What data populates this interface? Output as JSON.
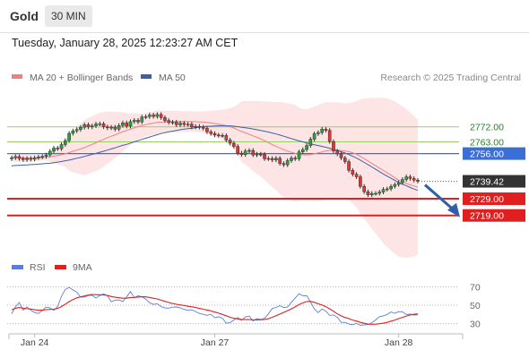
{
  "header": {
    "title": "Gold",
    "timeframe": "30 MIN"
  },
  "timestamp": "Tuesday, January 28, 2025 12:23:27 AM CET",
  "copyright": "Research © 2025 Trading Central",
  "colors": {
    "ma20": "#f08080",
    "ma50": "#3f5ea8",
    "bb_fill": "#fde0e0",
    "up": "#2e9e40",
    "down": "#d33b3b",
    "support": "#e02020",
    "resistance": "#9acd6a",
    "pivot": "#3a6fd8",
    "current": "#333333",
    "arrow": "#2f5fa8",
    "rsi": "#5a7fd8",
    "rsi_ma": "#e02020"
  },
  "chart_data": [
    {
      "type": "candlestick",
      "title": "Gold",
      "legend": [
        {
          "name": "MA 20 + Bollinger Bands",
          "color": "#f08080"
        },
        {
          "name": "MA 50",
          "color": "#3f5ea8"
        }
      ],
      "legend_position": "top-left",
      "ylim": [
        2706,
        2797
      ],
      "x_tick_labels": [
        {
          "index": 6,
          "label": "Jan 24"
        },
        {
          "index": 53,
          "label": "Jan 27"
        },
        {
          "index": 101,
          "label": "Jan 28"
        }
      ],
      "levels": [
        {
          "value": 2772.0,
          "label": "2772.00",
          "kind": "resistance"
        },
        {
          "value": 2763.0,
          "label": "2763.00",
          "kind": "resistance"
        },
        {
          "value": 2756.0,
          "label": "2756.00",
          "kind": "pivot"
        },
        {
          "value": 2739.42,
          "label": "2739.42",
          "kind": "current"
        },
        {
          "value": 2729.0,
          "label": "2729.00",
          "kind": "support"
        },
        {
          "value": 2719.0,
          "label": "2719.00",
          "kind": "support"
        }
      ],
      "forecast_arrow": {
        "from": 2739.42,
        "to": 2719.0,
        "direction": "down"
      },
      "closes": [
        2753.5,
        2754.2,
        2753.0,
        2752.4,
        2753.1,
        2752.6,
        2753.5,
        2754.0,
        2754.3,
        2755.2,
        2757.4,
        2759.3,
        2758.9,
        2761.4,
        2763.8,
        2768.1,
        2769.6,
        2770.4,
        2771.7,
        2773.3,
        2771.9,
        2772.6,
        2773.7,
        2773.8,
        2772.0,
        2771.4,
        2771.8,
        2770.6,
        2772.8,
        2774.4,
        2772.4,
        2775.1,
        2775.9,
        2774.9,
        2777.9,
        2778.1,
        2779.1,
        2778.2,
        2779.4,
        2777.5,
        2775.8,
        2774.6,
        2774.8,
        2773.2,
        2774.2,
        2773.4,
        2773.6,
        2771.9,
        2772.3,
        2771.8,
        2771.1,
        2769.0,
        2768.0,
        2767.1,
        2766.9,
        2766.8,
        2764.1,
        2762.2,
        2760.3,
        2756.3,
        2755.4,
        2757.5,
        2757.9,
        2755.2,
        2755.7,
        2755.5,
        2752.9,
        2753.1,
        2752.2,
        2753.2,
        2750.1,
        2749.3,
        2751.8,
        2753.3,
        2752.9,
        2757.0,
        2758.4,
        2760.8,
        2764.6,
        2767.9,
        2768.6,
        2770.6,
        2769.9,
        2763.2,
        2757.5,
        2755.8,
        2753.4,
        2751.2,
        2746.0,
        2743.6,
        2742.1,
        2736.4,
        2733.2,
        2731.3,
        2732.2,
        2732.2,
        2733.0,
        2734.6,
        2734.9,
        2736.4,
        2737.5,
        2738.6,
        2740.5,
        2742.1,
        2741.1,
        2740.1,
        2739.4
      ],
      "ma20": [
        2753.5,
        2753.8,
        2753.6,
        2753.4,
        2753.3,
        2753.2,
        2753.3,
        2753.4,
        2753.5,
        2753.7,
        2754.0,
        2754.5,
        2754.8,
        2755.3,
        2755.9,
        2756.6,
        2757.4,
        2758.1,
        2758.8,
        2759.6,
        2760.6,
        2761.5,
        2762.5,
        2763.6,
        2764.5,
        2765.5,
        2766.4,
        2767.2,
        2768.2,
        2769.1,
        2769.8,
        2770.6,
        2771.4,
        2772.1,
        2772.8,
        2773.3,
        2773.8,
        2774.2,
        2774.6,
        2774.8,
        2775.0,
        2775.1,
        2775.1,
        2775.1,
        2775.2,
        2775.2,
        2775.2,
        2775.1,
        2775.1,
        2774.9,
        2774.9,
        2774.6,
        2774.3,
        2774.0,
        2773.6,
        2773.1,
        2772.7,
        2772.1,
        2771.3,
        2770.3,
        2769.2,
        2768.4,
        2767.5,
        2766.6,
        2765.7,
        2764.8,
        2763.7,
        2762.6,
        2761.4,
        2760.4,
        2759.3,
        2758.3,
        2757.5,
        2756.8,
        2756.1,
        2755.6,
        2755.3,
        2755.2,
        2755.4,
        2755.9,
        2756.4,
        2757.0,
        2757.6,
        2758.0,
        2758.1,
        2758.1,
        2757.8,
        2757.5,
        2757.2,
        2756.5,
        2755.6,
        2754.3,
        2753.0,
        2751.6,
        2750.1,
        2748.7,
        2747.3,
        2745.9,
        2744.5,
        2743.1,
        2741.5,
        2740.1,
        2739.1,
        2738.1,
        2737.3,
        2736.6,
        2736.0
      ],
      "bb_upper": [
        2755.5,
        2756.6,
        2756.3,
        2756.0,
        2755.6,
        2755.2,
        2755.1,
        2755.0,
        2755.1,
        2755.4,
        2756.9,
        2758.9,
        2759.8,
        2761.8,
        2764.0,
        2767.4,
        2769.9,
        2771.9,
        2773.9,
        2776.2,
        2777.3,
        2778.4,
        2779.5,
        2780.4,
        2780.9,
        2781.0,
        2781.2,
        2781.0,
        2781.0,
        2780.8,
        2780.3,
        2780.2,
        2780.2,
        2779.9,
        2780.1,
        2780.4,
        2780.9,
        2781.2,
        2781.8,
        2781.7,
        2781.5,
        2781.5,
        2781.5,
        2781.5,
        2781.4,
        2781.4,
        2781.4,
        2781.3,
        2781.2,
        2781.2,
        2781.2,
        2781.4,
        2781.6,
        2781.8,
        2782.0,
        2782.2,
        2782.7,
        2783.3,
        2784.0,
        2785.5,
        2787.3,
        2787.5,
        2787.4,
        2787.6,
        2787.5,
        2787.3,
        2787.2,
        2787.1,
        2787.0,
        2786.7,
        2786.9,
        2786.6,
        2786.1,
        2785.6,
        2785.0,
        2783.4,
        2782.7,
        2782.5,
        2783.2,
        2784.1,
        2784.9,
        2786.0,
        2786.8,
        2786.7,
        2786.6,
        2786.6,
        2786.3,
        2786.1,
        2786.3,
        2786.8,
        2787.5,
        2788.5,
        2789.0,
        2789.1,
        2789.3,
        2789.3,
        2789.4,
        2789.4,
        2789.0,
        2788.2,
        2787.1,
        2785.7,
        2784.4,
        2782.6,
        2780.5,
        2778.6,
        2776.4
      ],
      "bb_lower": [
        2751.5,
        2751.1,
        2751.0,
        2750.9,
        2751.0,
        2751.2,
        2751.5,
        2751.8,
        2752.0,
        2752.0,
        2751.1,
        2750.2,
        2749.8,
        2748.8,
        2747.9,
        2745.8,
        2744.8,
        2744.3,
        2743.6,
        2743.0,
        2743.9,
        2744.7,
        2745.5,
        2746.7,
        2748.1,
        2750.0,
        2751.6,
        2753.3,
        2755.3,
        2757.3,
        2759.3,
        2761.1,
        2762.6,
        2764.3,
        2765.5,
        2766.3,
        2766.7,
        2767.2,
        2767.4,
        2767.9,
        2768.4,
        2768.7,
        2768.7,
        2768.7,
        2769.0,
        2769.0,
        2769.0,
        2768.9,
        2769.0,
        2768.7,
        2768.6,
        2767.8,
        2767.0,
        2766.2,
        2765.3,
        2764.0,
        2762.7,
        2761.0,
        2758.6,
        2755.1,
        2751.1,
        2749.3,
        2747.6,
        2745.6,
        2743.9,
        2742.3,
        2740.2,
        2738.1,
        2735.8,
        2734.0,
        2731.7,
        2730.0,
        2728.9,
        2728.0,
        2727.2,
        2727.8,
        2727.9,
        2727.9,
        2727.7,
        2727.7,
        2727.9,
        2728.0,
        2728.4,
        2729.3,
        2729.6,
        2729.6,
        2729.4,
        2728.9,
        2728.0,
        2726.2,
        2723.8,
        2720.1,
        2717.0,
        2714.1,
        2710.9,
        2708.2,
        2705.2,
        2702.4,
        2700.0,
        2698.0,
        2695.9,
        2694.4,
        2693.9,
        2693.6,
        2694.1,
        2694.5,
        2695.6
      ],
      "ma50": [
        2748.7,
        2748.9,
        2749.0,
        2749.1,
        2749.2,
        2749.4,
        2749.5,
        2749.7,
        2749.9,
        2750.1,
        2750.2,
        2750.6,
        2750.9,
        2751.3,
        2751.7,
        2752.1,
        2752.6,
        2753.2,
        2753.7,
        2754.3,
        2754.9,
        2755.5,
        2756.1,
        2756.8,
        2757.4,
        2758.1,
        2758.8,
        2759.4,
        2760.2,
        2760.9,
        2761.5,
        2762.3,
        2763.0,
        2763.7,
        2764.5,
        2765.2,
        2765.9,
        2766.6,
        2767.3,
        2768.0,
        2768.5,
        2769.0,
        2769.4,
        2769.8,
        2770.3,
        2770.6,
        2770.9,
        2771.1,
        2771.5,
        2771.8,
        2772.1,
        2772.3,
        2772.4,
        2772.5,
        2772.6,
        2772.6,
        2772.6,
        2772.6,
        2772.4,
        2772.1,
        2771.7,
        2771.4,
        2771.1,
        2770.7,
        2770.3,
        2769.8,
        2769.4,
        2768.9,
        2768.3,
        2767.7,
        2767.1,
        2766.4,
        2765.7,
        2765.0,
        2764.3,
        2763.6,
        2763.0,
        2762.4,
        2761.8,
        2761.3,
        2760.8,
        2760.3,
        2759.8,
        2759.2,
        2758.5,
        2757.8,
        2757.1,
        2756.3,
        2755.4,
        2754.4,
        2753.3,
        2752.1,
        2750.7,
        2749.4,
        2748.0,
        2746.6,
        2745.2,
        2743.8,
        2742.5,
        2741.2,
        2740.0,
        2738.8,
        2737.7,
        2736.7,
        2735.7,
        2734.8,
        2734.0
      ]
    },
    {
      "type": "line",
      "title": "RSI",
      "legend": [
        {
          "name": "RSI",
          "color": "#5a7fd8"
        },
        {
          "name": "9MA",
          "color": "#e02020"
        }
      ],
      "legend_position": "top-left",
      "ylim": [
        22,
        80
      ],
      "y_ticks": [
        70,
        50,
        30
      ],
      "rsi": [
        40.8,
        48.5,
        52.9,
        44.7,
        48.1,
        44.4,
        42.1,
        41.0,
        44.4,
        48.0,
        47.2,
        44.4,
        48.7,
        59.8,
        67.0,
        69.3,
        66.5,
        64.2,
        58.7,
        58.8,
        60.6,
        60.7,
        57.8,
        60.4,
        62.2,
        60.4,
        53.7,
        55.5,
        55.6,
        54.0,
        58.9,
        64.8,
        58.1,
        60.2,
        59.2,
        56.6,
        52.7,
        50.9,
        51.7,
        48.5,
        47.1,
        46.8,
        47.9,
        48.1,
        47.1,
        45.6,
        44.4,
        45.1,
        43.2,
        41.1,
        40.2,
        39.0,
        40.3,
        36.6,
        37.5,
        36.0,
        30.6,
        31.3,
        34.0,
        36.7,
        33.7,
        37.5,
        38.3,
        33.0,
        35.5,
        34.6,
        35.9,
        40.6,
        46.5,
        47.6,
        49.5,
        47.4,
        48.0,
        53.2,
        57.7,
        62.4,
        60.3,
        60.3,
        53.5,
        46.1,
        42.0,
        46.0,
        43.7,
        39.0,
        39.6,
        36.9,
        31.5,
        31.5,
        29.6,
        29.0,
        30.4,
        28.4,
        28.8,
        29.2,
        31.1,
        34.2,
        37.7,
        38.5,
        40.1,
        42.7,
        41.3,
        43.1,
        42.9,
        40.0,
        40.4,
        39.4,
        39.6
      ],
      "rsi_ma": [
        45.1,
        46.7,
        47.5,
        46.8,
        46.2,
        45.9,
        45.1,
        44.6,
        44.6,
        45.2,
        45.5,
        45.7,
        46.6,
        48.6,
        51.1,
        53.9,
        56.1,
        58.0,
        59.1,
        60.1,
        61.0,
        61.6,
        61.3,
        61.3,
        61.1,
        60.6,
        59.4,
        58.6,
        58.1,
        57.6,
        57.6,
        58.3,
        58.4,
        58.8,
        59.1,
        59.0,
        58.4,
        57.5,
        56.8,
        55.4,
        54.2,
        53.0,
        51.9,
        51.0,
        50.3,
        49.7,
        48.9,
        48.3,
        47.5,
        46.6,
        45.7,
        44.8,
        43.9,
        42.6,
        41.4,
        40.1,
        38.6,
        37.0,
        35.9,
        35.2,
        34.7,
        34.5,
        34.5,
        34.3,
        34.2,
        34.3,
        34.6,
        35.4,
        37.0,
        38.6,
        40.5,
        42.3,
        44.1,
        46.1,
        48.2,
        50.7,
        52.5,
        54.0,
        54.1,
        53.1,
        51.6,
        50.2,
        48.4,
        46.1,
        43.5,
        40.7,
        38.5,
        36.8,
        35.5,
        34.0,
        32.9,
        31.5,
        30.5,
        29.6,
        29.4,
        29.5,
        30.0,
        30.6,
        31.5,
        32.8,
        34.0,
        35.5,
        36.9,
        38.3,
        39.5,
        40.3,
        40.6
      ]
    }
  ]
}
